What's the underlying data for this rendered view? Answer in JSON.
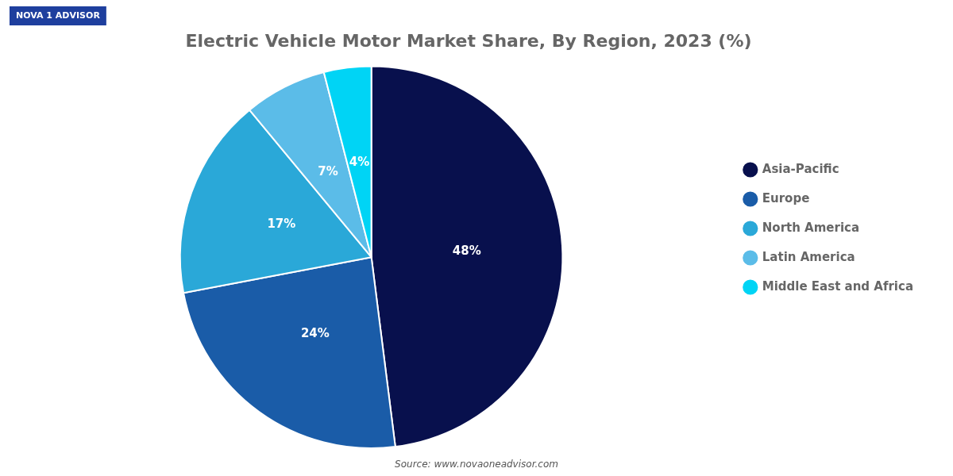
{
  "chart_data": {
    "type": "pie",
    "title": "Electric Vehicle Motor Market Share, By Region, 2023 (%)",
    "categories": [
      "Asia-Pacific",
      "Europe",
      "North America",
      "Latin America",
      "Middle East and Africa"
    ],
    "values": [
      48,
      24,
      17,
      7,
      4
    ],
    "value_labels": [
      "48%",
      "24%",
      "17%",
      "7%",
      "4%"
    ],
    "data_labels": true,
    "colors": [
      "#08104d",
      "#1a5ca8",
      "#2aa8d8",
      "#5bbce8",
      "#00d4f5"
    ],
    "legend": "right",
    "annotations": [
      "NOVA 1 ADVISOR",
      "Source: www.novaoneadvisor.com"
    ]
  }
}
